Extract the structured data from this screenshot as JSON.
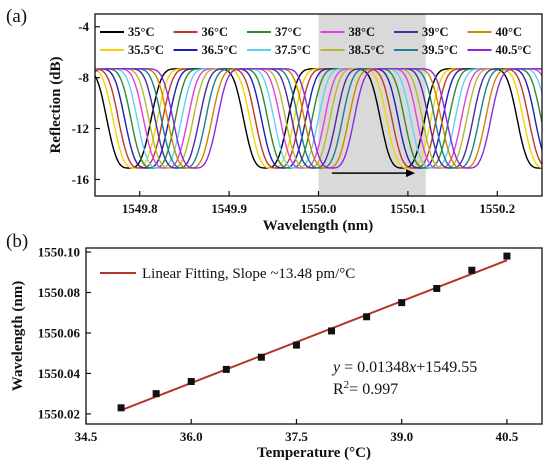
{
  "chart_data": [
    {
      "panel": "(a)",
      "type": "line",
      "xlabel": "Wavelength (nm)",
      "ylabel": "Reflection (dB)",
      "xlim": [
        1549.75,
        1550.25
      ],
      "ylim": [
        -17.3,
        -3.0
      ],
      "x_ticks": [
        "1549.8",
        "1549.9",
        "1550.0",
        "1550.1",
        "1550.2"
      ],
      "y_ticks": [
        "-4",
        "-8",
        "-12",
        "-16"
      ],
      "highlight_band": [
        1550.0,
        1550.12
      ],
      "top_level_db": -7.3,
      "dip_level_db": -15.1,
      "dip_period_nm": 0.153,
      "series": [
        {
          "name": "35°C",
          "color": "#000000",
          "dip_center": 1549.788
        },
        {
          "name": "35.5°C",
          "color": "#f2d500",
          "dip_center": 1549.795
        },
        {
          "name": "36°C",
          "color": "#c0392b",
          "dip_center": 1549.801
        },
        {
          "name": "36.5°C",
          "color": "#1f1fb4",
          "dip_center": 1549.808
        },
        {
          "name": "37°C",
          "color": "#2e8b2e",
          "dip_center": 1549.815
        },
        {
          "name": "37.5°C",
          "color": "#5fd3f3",
          "dip_center": 1549.822
        },
        {
          "name": "38°C",
          "color": "#e040e0",
          "dip_center": 1549.829
        },
        {
          "name": "38.5°C",
          "color": "#b8b830",
          "dip_center": 1549.835
        },
        {
          "name": "39°C",
          "color": "#4b2c9c",
          "dip_center": 1549.842
        },
        {
          "name": "39.5°C",
          "color": "#1d7f8f",
          "dip_center": 1549.849
        },
        {
          "name": "40°C",
          "color": "#cc8800",
          "dip_center": 1549.856
        },
        {
          "name": "40.5°C",
          "color": "#8a2be2",
          "dip_center": 1549.862
        }
      ]
    },
    {
      "panel": "(b)",
      "type": "scatter",
      "xlabel": "Temperature (°C)",
      "ylabel": "Wavelength (nm)",
      "xlim": [
        34.5,
        41.0
      ],
      "ylim": [
        1550.015,
        1550.102
      ],
      "x_ticks": [
        "34.5",
        "36.0",
        "37.5",
        "39.0",
        "40.5"
      ],
      "y_ticks": [
        "1550.02",
        "1550.04",
        "1550.06",
        "1550.08",
        "1550.10"
      ],
      "x": [
        35.0,
        35.5,
        36.0,
        36.5,
        37.0,
        37.5,
        38.0,
        38.5,
        39.0,
        39.5,
        40.0,
        40.5
      ],
      "y": [
        1550.023,
        1550.03,
        1550.036,
        1550.042,
        1550.048,
        1550.054,
        1550.061,
        1550.068,
        1550.075,
        1550.082,
        1550.091,
        1550.098
      ],
      "fit": {
        "legend": "Linear Fitting, Slope ~13.48 pm/°C",
        "slope": 0.01348,
        "intercept": 1549.55,
        "color": "#b5342a",
        "eq_y": "y",
        "eq_rest": " = 0.01348",
        "eq_x": "x",
        "eq_tail": "+1549.55",
        "r2_label": "R",
        "r2_sup": "2",
        "r2_value": "= 0.997"
      }
    }
  ]
}
